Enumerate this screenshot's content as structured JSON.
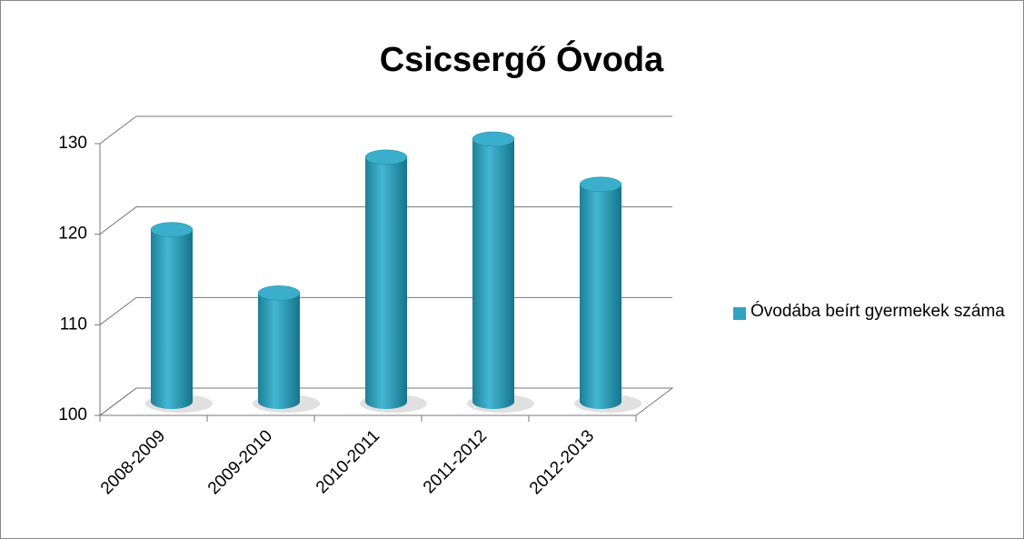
{
  "chart_data": {
    "type": "bar3d",
    "title": "Csicsergő Óvoda",
    "categories": [
      "2008-2009",
      "2009-2010",
      "2010-2011",
      "2011-2012",
      "2012-2013"
    ],
    "series": [
      {
        "name": "Óvodába beírt gyermekek száma",
        "color": "#31a3bf",
        "values": [
          119,
          112,
          127,
          129,
          124
        ]
      }
    ],
    "ylim": [
      100,
      130
    ],
    "yticks": [
      100,
      110,
      120,
      130
    ],
    "grid": true,
    "legend": "right"
  }
}
